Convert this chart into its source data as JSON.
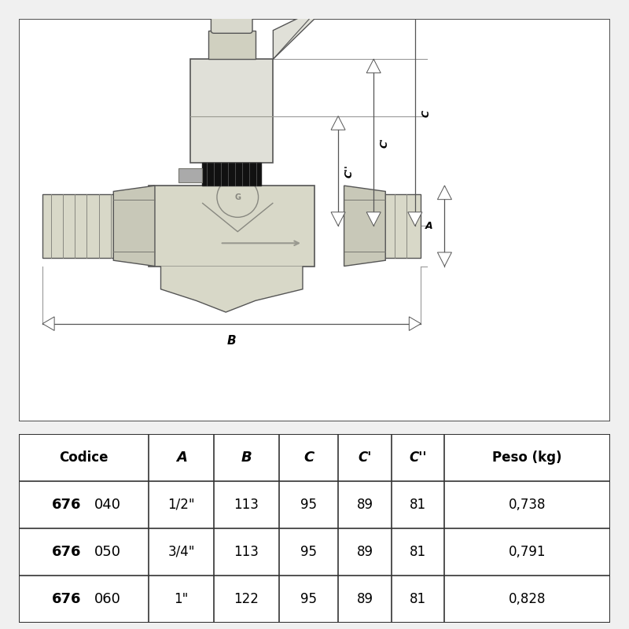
{
  "bg_color": "#f0f0f0",
  "diagram_bg": "#ffffff",
  "table_bg": "#ffffff",
  "border_color": "#555555",
  "valve_fill": "#d8d8c8",
  "valve_edge": "#555555",
  "dark_fill": "#888880",
  "black_fill": "#1a1a1a",
  "dim_color": "#555555",
  "dim_line_color": "#999999",
  "header_row": [
    "Codice",
    "A",
    "B",
    "C",
    "C'",
    "C''",
    "Peso (kg)"
  ],
  "rows": [
    [
      "676",
      "040",
      "1/2\"",
      "113",
      "95",
      "89",
      "81",
      "0,738"
    ],
    [
      "676",
      "050",
      "3/4\"",
      "113",
      "95",
      "89",
      "81",
      "0,791"
    ],
    [
      "676",
      "060",
      "1\"",
      "122",
      "95",
      "89",
      "81",
      "0,828"
    ]
  ]
}
